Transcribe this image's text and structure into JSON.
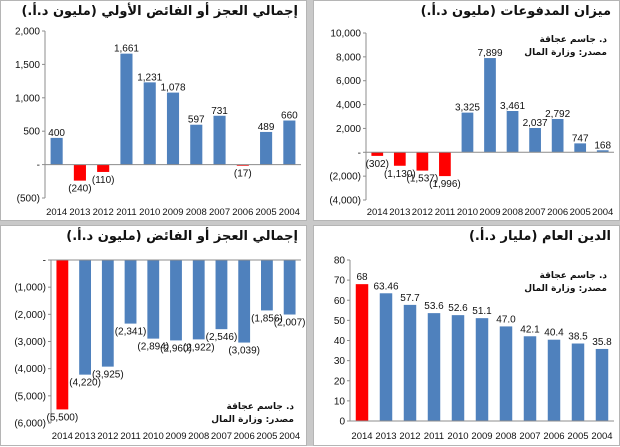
{
  "source": {
    "author": "د. جاسم عجاقة",
    "ministry": "مصدر: وزارة المال"
  },
  "chart_data": [
    {
      "type": "bar",
      "title": "إجمالي العجز أو الفائض الأولي (مليون د.أ.)",
      "categories": [
        "2014",
        "2013",
        "2012",
        "2011",
        "2010",
        "2009",
        "2008",
        "2007",
        "2006",
        "2005",
        "2004"
      ],
      "values": [
        400,
        -240,
        -110,
        1661,
        1231,
        1078,
        597,
        731,
        -17,
        489,
        660
      ],
      "data_labels": [
        "400",
        "(240)",
        "(110)",
        "1,661",
        "1,231",
        "1,078",
        "597",
        "731",
        "(17)",
        "489",
        "660"
      ],
      "ylim": [
        -500,
        2000
      ],
      "yticks": [
        2000,
        1500,
        1000,
        500,
        0,
        -500
      ],
      "ytick_labels": [
        "2,000",
        "1,500",
        "1,000",
        "500",
        "-",
        "(500)"
      ],
      "colors": {
        "positive": "#4f81bd",
        "negative": "#ff0000"
      }
    },
    {
      "type": "bar",
      "title": "ميزان المدفوعات (مليون د.أ.)",
      "categories": [
        "2014",
        "2013",
        "2012",
        "2011",
        "2010",
        "2009",
        "2008",
        "2007",
        "2006",
        "2005",
        "2004"
      ],
      "values": [
        -302,
        -1130,
        -1537,
        -1996,
        3325,
        7899,
        3461,
        2037,
        2792,
        747,
        168
      ],
      "data_labels": [
        "(302)",
        "(1,130)",
        "(1,537)",
        "(1,996)",
        "3,325",
        "7,899",
        "3,461",
        "2,037",
        "2,792",
        "747",
        "168"
      ],
      "ylim": [
        -4000,
        10000
      ],
      "yticks": [
        10000,
        8000,
        6000,
        4000,
        2000,
        0,
        -2000,
        -4000
      ],
      "ytick_labels": [
        "10,000",
        "8,000",
        "6,000",
        "4,000",
        "2,000",
        "-",
        "(2,000)",
        "(4,000)"
      ],
      "colors": {
        "positive": "#4f81bd",
        "negative": "#ff0000"
      }
    },
    {
      "type": "bar",
      "title": "إجمالي العجز أو الفائض (مليون د.أ.)",
      "categories": [
        "2014",
        "2013",
        "2012",
        "2011",
        "2010",
        "2009",
        "2008",
        "2007",
        "2006",
        "2005",
        "2004"
      ],
      "values": [
        -5500,
        -4220,
        -3925,
        -2341,
        -2894,
        -2960,
        -2922,
        -2546,
        -3039,
        -1856,
        -2007
      ],
      "data_labels": [
        "(5,500)",
        "(4,220)",
        "(3,925)",
        "(2,341)",
        "(2,894)",
        "(2,960)",
        "(2,922)",
        "(2,546)",
        "(3,039)",
        "(1,856)",
        "(2,007)"
      ],
      "ylim": [
        -6000,
        0
      ],
      "yticks": [
        0,
        -1000,
        -2000,
        -3000,
        -4000,
        -5000,
        -6000
      ],
      "ytick_labels": [
        "-",
        "(1,000)",
        "(2,000)",
        "(3,000)",
        "(4,000)",
        "(5,000)",
        "(6,000)"
      ],
      "highlight_index": 0,
      "colors": {
        "bar": "#4f81bd",
        "highlight": "#ff0000"
      }
    },
    {
      "type": "bar",
      "title": "الدين العام (مليار د.أ.)",
      "categories": [
        "2014",
        "2013",
        "2012",
        "2011",
        "2010",
        "2009",
        "2008",
        "2007",
        "2006",
        "2005",
        "2004"
      ],
      "values": [
        68,
        63.46,
        57.7,
        53.6,
        52.6,
        51.1,
        47.0,
        42.1,
        40.4,
        38.5,
        35.8
      ],
      "data_labels": [
        "68",
        "63.46",
        "57.7",
        "53.6",
        "52.6",
        "51.1",
        "47.0",
        "42.1",
        "40.4",
        "38.5",
        "35.8"
      ],
      "ylim": [
        0,
        80
      ],
      "yticks": [
        80,
        70,
        60,
        50,
        40,
        30,
        20,
        10,
        0
      ],
      "ytick_labels": [
        "80",
        "70",
        "60",
        "50",
        "40",
        "30",
        "20",
        "10",
        "0"
      ],
      "highlight_index": 0,
      "colors": {
        "bar": "#4f81bd",
        "highlight": "#ff0000"
      }
    }
  ]
}
